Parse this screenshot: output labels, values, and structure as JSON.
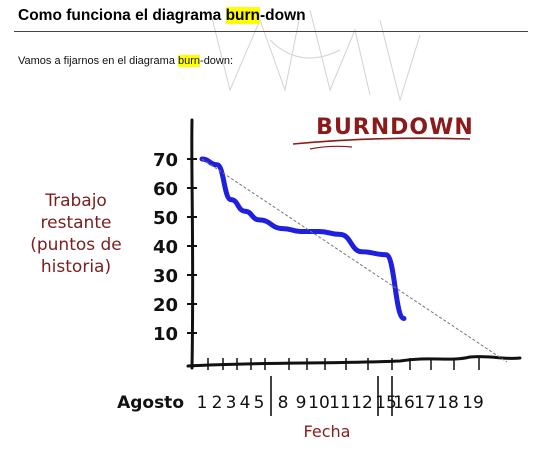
{
  "heading": {
    "before": "Como funciona el diagrama ",
    "highlight": "burn",
    "after": "-down"
  },
  "intro": {
    "before": "Vamos a fijarnos en el diagrama ",
    "highlight": "burn",
    "after": "-down:"
  },
  "chart_data": {
    "type": "line",
    "title": "BURNDOWN",
    "ylabel_lines": [
      "Trabajo",
      "restante",
      "(puntos de",
      "historia)"
    ],
    "xlabel": "Fecha",
    "x_prefix_label": "Agosto",
    "x_ticks": [
      "1",
      "2",
      "3",
      "4",
      "5",
      "8",
      "9",
      "10",
      "11",
      "12",
      "15",
      "16",
      "17",
      "18",
      "19"
    ],
    "y_ticks": [
      "70",
      "60",
      "50",
      "40",
      "30",
      "20",
      "10"
    ],
    "ylim": [
      0,
      75
    ],
    "grid": false,
    "series": [
      {
        "kind": "actual",
        "color": "#1f1fe0",
        "points": [
          {
            "x": "1",
            "y": 70
          },
          {
            "x": "2",
            "y": 68
          },
          {
            "x": "3",
            "y": 56
          },
          {
            "x": "4",
            "y": 52
          },
          {
            "x": "5",
            "y": 49
          },
          {
            "x": "8",
            "y": 46
          },
          {
            "x": "9",
            "y": 45
          },
          {
            "x": "10",
            "y": 45
          },
          {
            "x": "11",
            "y": 44
          },
          {
            "x": "12",
            "y": 38
          },
          {
            "x": "15",
            "y": 37
          },
          {
            "x": "16",
            "y": 15
          }
        ]
      },
      {
        "kind": "ideal",
        "color": "#777777",
        "points": [
          {
            "x": "1",
            "y": 70
          },
          {
            "x": "19",
            "y": 0
          }
        ]
      }
    ],
    "colors": {
      "title": "#8b1a1a",
      "ylabel": "#7a1e1e",
      "xlabel": "#8b1a1a",
      "axis": "#111111"
    }
  }
}
